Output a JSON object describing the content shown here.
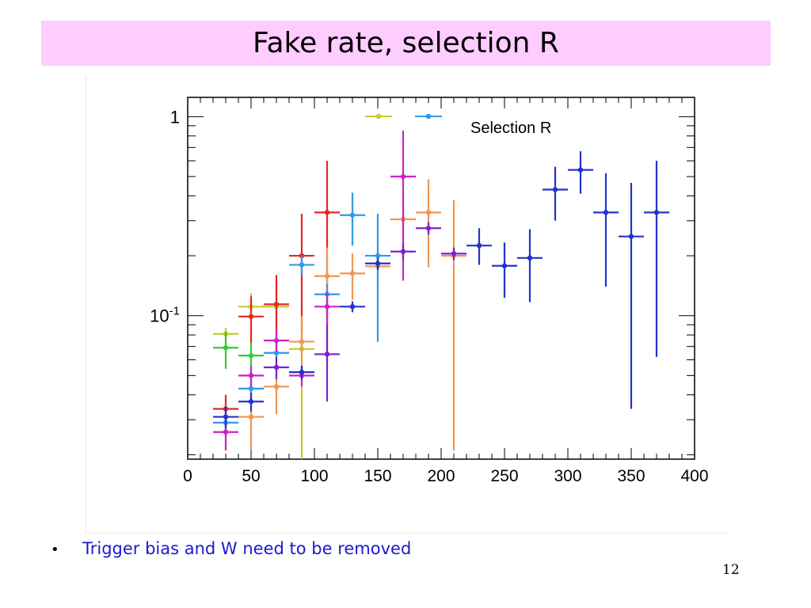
{
  "slide": {
    "title": "Fake rate, selection R",
    "bullet_marker": "•",
    "bullet_text": "Trigger bias and W need to be removed",
    "page_number": "12"
  },
  "chart_data": {
    "type": "scatter",
    "title": "",
    "xlabel": "",
    "ylabel": "",
    "xlim": [
      0,
      400
    ],
    "ylim": [
      0.019,
      1.25
    ],
    "y_scale": "log",
    "grid": false,
    "x_ticks": [
      0,
      50,
      100,
      150,
      200,
      250,
      300,
      350,
      400
    ],
    "x_tick_labels": [
      "0",
      "50",
      "100",
      "150",
      "200",
      "250",
      "300",
      "350",
      "400"
    ],
    "y_ticks": [
      {
        "value": 1,
        "label": "1"
      },
      {
        "value": 0.1,
        "label": "10^-1",
        "base": "10",
        "exp": "-1"
      }
    ],
    "legend": {
      "placement": "top-right",
      "text": "Selection R",
      "markers": [
        {
          "color": "#c8c832"
        },
        {
          "color": "#3399e6"
        }
      ]
    },
    "series": [
      {
        "color": "#c8c832",
        "points": [
          {
            "x": 30,
            "y": 0.081,
            "xerr": 10,
            "ylo": 0.074,
            "yhi": 0.087
          },
          {
            "x": 50,
            "y": 0.111,
            "xerr": 10,
            "ylo": 0.093,
            "yhi": 0.13
          },
          {
            "x": 70,
            "y": 0.111,
            "xerr": 10,
            "ylo": 0.072,
            "yhi": 0.152
          },
          {
            "x": 90,
            "y": 0.068,
            "xerr": 10,
            "ylo": 0.019,
            "yhi": 0.113
          }
        ]
      },
      {
        "color": "#33cc33",
        "points": [
          {
            "x": 30,
            "y": 0.069,
            "xerr": 10,
            "ylo": 0.054,
            "yhi": 0.083
          },
          {
            "x": 50,
            "y": 0.063,
            "xerr": 10,
            "ylo": 0.043,
            "yhi": 0.082
          }
        ]
      },
      {
        "color": "#e62626",
        "points": [
          {
            "x": 30,
            "y": 0.034,
            "xerr": 10,
            "ylo": 0.028,
            "yhi": 0.04
          },
          {
            "x": 50,
            "y": 0.099,
            "xerr": 10,
            "ylo": 0.073,
            "yhi": 0.125
          },
          {
            "x": 70,
            "y": 0.114,
            "xerr": 10,
            "ylo": 0.068,
            "yhi": 0.16
          },
          {
            "x": 90,
            "y": 0.2,
            "xerr": 10,
            "ylo": 0.083,
            "yhi": 0.325
          },
          {
            "x": 110,
            "y": 0.33,
            "xerr": 10,
            "ylo": 0.064,
            "yhi": 0.6
          }
        ]
      },
      {
        "color": "#f09650",
        "points": [
          {
            "x": 50,
            "y": 0.031,
            "xerr": 10,
            "ylo": 0.021,
            "yhi": 0.042
          },
          {
            "x": 70,
            "y": 0.044,
            "xerr": 10,
            "ylo": 0.032,
            "yhi": 0.057
          },
          {
            "x": 90,
            "y": 0.074,
            "xerr": 10,
            "ylo": 0.05,
            "yhi": 0.1
          },
          {
            "x": 110,
            "y": 0.158,
            "xerr": 10,
            "ylo": 0.095,
            "yhi": 0.22
          },
          {
            "x": 130,
            "y": 0.163,
            "xerr": 10,
            "ylo": 0.12,
            "yhi": 0.205
          },
          {
            "x": 150,
            "y": 0.177,
            "xerr": 10,
            "ylo": 0.14,
            "yhi": 0.215
          },
          {
            "x": 170,
            "y": 0.305,
            "xerr": 10,
            "ylo": 0.2,
            "yhi": 0.41
          },
          {
            "x": 190,
            "y": 0.33,
            "xerr": 10,
            "ylo": 0.175,
            "yhi": 0.485
          },
          {
            "x": 210,
            "y": 0.2,
            "xerr": 10,
            "ylo": 0.021,
            "yhi": 0.38
          }
        ]
      },
      {
        "color": "#3399e6",
        "points": [
          {
            "x": 30,
            "y": 0.029,
            "xerr": 10,
            "ylo": 0.025,
            "yhi": 0.033
          },
          {
            "x": 50,
            "y": 0.043,
            "xerr": 10,
            "ylo": 0.037,
            "yhi": 0.049
          },
          {
            "x": 70,
            "y": 0.065,
            "xerr": 10,
            "ylo": 0.056,
            "yhi": 0.074
          },
          {
            "x": 90,
            "y": 0.18,
            "xerr": 10,
            "ylo": 0.16,
            "yhi": 0.2
          },
          {
            "x": 110,
            "y": 0.128,
            "xerr": 10,
            "ylo": 0.112,
            "yhi": 0.144
          },
          {
            "x": 130,
            "y": 0.32,
            "xerr": 10,
            "ylo": 0.225,
            "yhi": 0.415
          },
          {
            "x": 150,
            "y": 0.2,
            "xerr": 10,
            "ylo": 0.074,
            "yhi": 0.325
          }
        ]
      },
      {
        "color": "#cc22cc",
        "points": [
          {
            "x": 30,
            "y": 0.026,
            "xerr": 10,
            "ylo": 0.021,
            "yhi": 0.031
          },
          {
            "x": 50,
            "y": 0.05,
            "xerr": 10,
            "ylo": 0.044,
            "yhi": 0.056
          },
          {
            "x": 70,
            "y": 0.075,
            "xerr": 10,
            "ylo": 0.066,
            "yhi": 0.084
          },
          {
            "x": 90,
            "y": 0.05,
            "xerr": 10,
            "ylo": 0.044,
            "yhi": 0.056
          },
          {
            "x": 110,
            "y": 0.111,
            "xerr": 10,
            "ylo": 0.09,
            "yhi": 0.132
          },
          {
            "x": 170,
            "y": 0.5,
            "xerr": 10,
            "ylo": 0.15,
            "yhi": 0.85
          }
        ]
      },
      {
        "color": "#7a22cc",
        "points": [
          {
            "x": 70,
            "y": 0.055,
            "xerr": 10,
            "ylo": 0.048,
            "yhi": 0.062
          },
          {
            "x": 110,
            "y": 0.064,
            "xerr": 10,
            "ylo": 0.037,
            "yhi": 0.09
          },
          {
            "x": 170,
            "y": 0.21,
            "xerr": 10,
            "ylo": 0.19,
            "yhi": 0.23
          },
          {
            "x": 190,
            "y": 0.275,
            "xerr": 10,
            "ylo": 0.255,
            "yhi": 0.295
          },
          {
            "x": 210,
            "y": 0.205,
            "xerr": 10,
            "ylo": 0.19,
            "yhi": 0.22
          }
        ]
      },
      {
        "color": "#2233cc",
        "points": [
          {
            "x": 30,
            "y": 0.031,
            "xerr": 10,
            "ylo": 0.027,
            "yhi": 0.035
          },
          {
            "x": 50,
            "y": 0.037,
            "xerr": 10,
            "ylo": 0.033,
            "yhi": 0.041
          },
          {
            "x": 90,
            "y": 0.052,
            "xerr": 10,
            "ylo": 0.048,
            "yhi": 0.056
          },
          {
            "x": 130,
            "y": 0.111,
            "xerr": 10,
            "ylo": 0.104,
            "yhi": 0.118
          },
          {
            "x": 150,
            "y": 0.183,
            "xerr": 10,
            "ylo": 0.17,
            "yhi": 0.196
          },
          {
            "x": 230,
            "y": 0.225,
            "xerr": 10,
            "ylo": 0.18,
            "yhi": 0.275
          },
          {
            "x": 250,
            "y": 0.178,
            "xerr": 10,
            "ylo": 0.123,
            "yhi": 0.233
          },
          {
            "x": 270,
            "y": 0.195,
            "xerr": 10,
            "ylo": 0.117,
            "yhi": 0.272
          },
          {
            "x": 290,
            "y": 0.43,
            "xerr": 10,
            "ylo": 0.3,
            "yhi": 0.56
          },
          {
            "x": 310,
            "y": 0.54,
            "xerr": 10,
            "ylo": 0.41,
            "yhi": 0.67
          },
          {
            "x": 330,
            "y": 0.33,
            "xerr": 10,
            "ylo": 0.14,
            "yhi": 0.52
          },
          {
            "x": 350,
            "y": 0.25,
            "xerr": 10,
            "ylo": 0.034,
            "yhi": 0.465
          },
          {
            "x": 370,
            "y": 0.33,
            "xerr": 10,
            "ylo": 0.062,
            "yhi": 0.6
          }
        ]
      }
    ]
  }
}
